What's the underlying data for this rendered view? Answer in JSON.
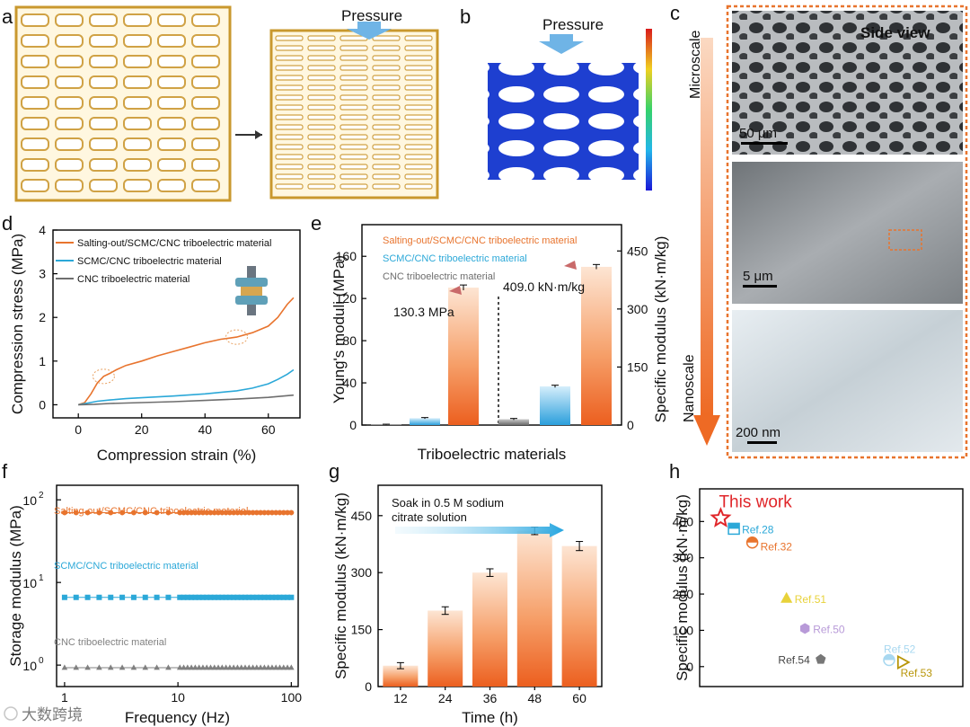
{
  "panels": {
    "a": {
      "letter": "a",
      "pressure": "Pressure"
    },
    "b": {
      "letter": "b",
      "pressure": "Pressure"
    },
    "c": {
      "letter": "c",
      "microscale": "Microscale",
      "nanoscale": "Nanoscale",
      "side_view": "Side view",
      "scale1": "50 μm",
      "scale2": "5 μm",
      "scale3": "200 nm"
    },
    "d": {
      "letter": "d"
    },
    "e": {
      "letter": "e",
      "annot_left": "130.3 MPa",
      "annot_right": "409.0 kN·m/kg"
    },
    "f": {
      "letter": "f"
    },
    "g": {
      "letter": "g",
      "annotation_line1": "Soak in 0.5 M sodium",
      "annotation_line2": "citrate solution"
    },
    "h": {
      "letter": "h"
    }
  },
  "colors": {
    "orange": "#e8742e",
    "blue": "#2ba8d8",
    "gray": "#6e6e6e",
    "gold": "#d9a63a",
    "red": "#e0262a"
  },
  "watermark": "大数跨境",
  "chart_data": [
    {
      "id": "d",
      "type": "line",
      "xlabel": "Compression strain (%)",
      "ylabel": "Compression stress (MPa)",
      "xlim": [
        -8,
        70
      ],
      "ylim": [
        -0.3,
        4
      ],
      "xticks": [
        0,
        20,
        40,
        60
      ],
      "yticks": [
        0,
        1,
        2,
        3,
        4
      ],
      "series": [
        {
          "name": "Salting-out/SCMC/CNC triboelectric material",
          "color": "#e8742e",
          "x": [
            0,
            2,
            4,
            6,
            8,
            10,
            12,
            15,
            20,
            25,
            30,
            35,
            40,
            45,
            50,
            55,
            60,
            63,
            66,
            68
          ],
          "y": [
            0,
            0.05,
            0.25,
            0.5,
            0.65,
            0.72,
            0.8,
            0.9,
            1.0,
            1.12,
            1.22,
            1.32,
            1.42,
            1.5,
            1.55,
            1.65,
            1.8,
            2.0,
            2.3,
            2.45
          ]
        },
        {
          "name": "SCMC/CNC triboelectric material",
          "color": "#2ba8d8",
          "x": [
            0,
            3,
            6,
            10,
            15,
            20,
            30,
            40,
            50,
            55,
            60,
            63,
            66,
            68
          ],
          "y": [
            0,
            0.04,
            0.08,
            0.11,
            0.14,
            0.16,
            0.2,
            0.25,
            0.32,
            0.38,
            0.48,
            0.58,
            0.7,
            0.8
          ]
        },
        {
          "name": "CNC triboelectric material",
          "color": "#6e6e6e",
          "x": [
            0,
            5,
            10,
            20,
            30,
            40,
            50,
            60,
            68
          ],
          "y": [
            0,
            0.01,
            0.03,
            0.05,
            0.07,
            0.1,
            0.13,
            0.17,
            0.22
          ]
        }
      ]
    },
    {
      "id": "e",
      "type": "bar",
      "xlabel": "Triboelectric materials",
      "ylabel": "Young's moduli (MPa)",
      "ylabel2": "Specific modulus (kN·m/kg)",
      "ylim": [
        0,
        190
      ],
      "yticks": [
        0,
        40,
        80,
        120,
        160
      ],
      "ylim2": [
        0,
        518
      ],
      "yticks2": [
        0,
        150,
        300,
        450
      ],
      "legend": [
        "Salting-out/SCMC/CNC triboelectric material",
        "SCMC/CNC triboelectric material",
        "CNC triboelectric material"
      ],
      "youngs": [
        {
          "name": "CNC",
          "value": 0.5,
          "err": 0.3
        },
        {
          "name": "SCMC/CNC",
          "value": 6.5,
          "err": 0.6
        },
        {
          "name": "Salting-out/SCMC/CNC",
          "value": 130.3,
          "err": 2.5
        }
      ],
      "specific": [
        {
          "name": "CNC",
          "value": 15,
          "err": 2
        },
        {
          "name": "SCMC/CNC",
          "value": 100,
          "err": 3
        },
        {
          "name": "Salting-out/SCMC/CNC",
          "value": 409.0,
          "err": 6
        }
      ]
    },
    {
      "id": "f",
      "type": "scatter",
      "xlabel": "Frequency (Hz)",
      "ylabel": "Storage modulus (MPa)",
      "xscale": "log",
      "yscale": "log",
      "xlim": [
        0.85,
        115
      ],
      "ylim": [
        0.55,
        150
      ],
      "xticks": [
        1,
        10,
        100
      ],
      "xtick_labels": [
        "1",
        "10",
        "100"
      ],
      "yticks": [
        1,
        10,
        100
      ],
      "ytick_exponents": [
        "0",
        "1",
        "2"
      ],
      "ytick_base": "10",
      "series": [
        {
          "name": "Salting-out/SCMC/CNC triboelectric material",
          "color": "#e8742e",
          "marker": "circle",
          "level": 70
        },
        {
          "name": "SCMC/CNC triboelectric material",
          "color": "#2ba8d8",
          "marker": "square",
          "level": 6.6
        },
        {
          "name": "CNC triboelectric material",
          "color": "#808080",
          "marker": "triangle",
          "level": 0.93
        }
      ]
    },
    {
      "id": "g",
      "type": "bar",
      "xlabel": "Time (h)",
      "ylabel": "Specific modulus (kN·m/kg)",
      "ylim": [
        0,
        530
      ],
      "yticks": [
        0,
        150,
        300,
        450
      ],
      "categories": [
        "12",
        "24",
        "36",
        "48",
        "60"
      ],
      "values": [
        55,
        200,
        300,
        410,
        370
      ],
      "errors": [
        8,
        10,
        10,
        10,
        12
      ]
    },
    {
      "id": "h",
      "type": "scatter",
      "xlabel": "",
      "ylabel": "Specific modulus (kN·m/kg)",
      "ylim": [
        -55,
        490
      ],
      "yticks": [
        0,
        100,
        200,
        300,
        400
      ],
      "points": [
        {
          "label": "This work",
          "x": 0.08,
          "y": 409,
          "marker": "star",
          "color": "#e0262a"
        },
        {
          "label": "Ref.28",
          "x": 0.13,
          "y": 380,
          "marker": "half-square",
          "color": "#2ba8d8"
        },
        {
          "label": "Ref.32",
          "x": 0.2,
          "y": 342,
          "marker": "half-circle",
          "color": "#e8742e"
        },
        {
          "label": "Ref.51",
          "x": 0.33,
          "y": 188,
          "marker": "triangle",
          "color": "#e8d23a"
        },
        {
          "label": "Ref.50",
          "x": 0.4,
          "y": 105,
          "marker": "hexagon",
          "color": "#b89ad8"
        },
        {
          "label": "Ref.54",
          "x": 0.46,
          "y": 20,
          "marker": "pentagon",
          "color": "#777777"
        },
        {
          "label": "Ref.52",
          "x": 0.72,
          "y": 18,
          "marker": "half-circle",
          "color": "#a8d8f0"
        },
        {
          "label": "Ref.53",
          "x": 0.77,
          "y": 12,
          "marker": "triangle-right",
          "color": "#b8960a"
        }
      ]
    }
  ]
}
